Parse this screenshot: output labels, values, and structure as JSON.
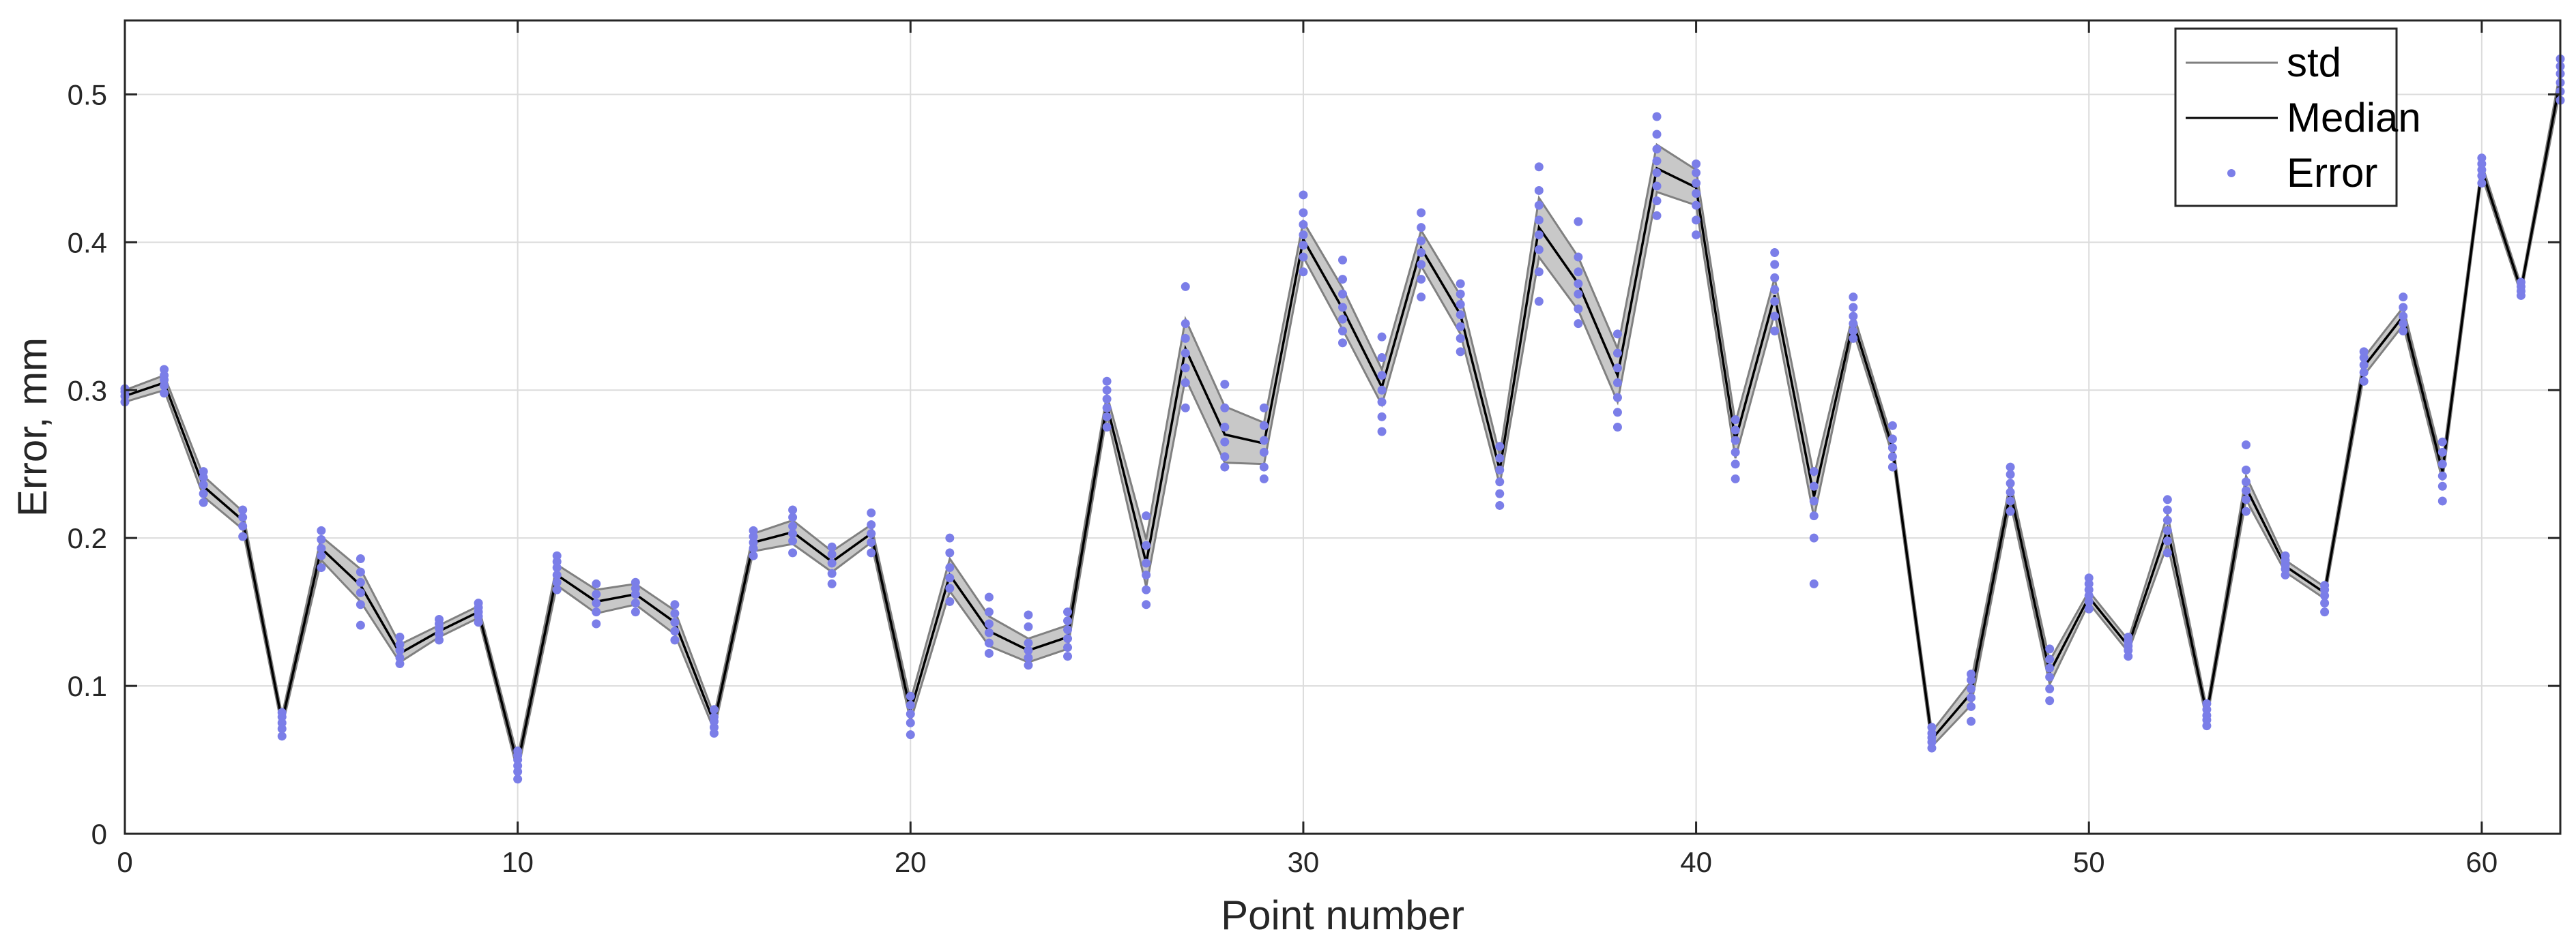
{
  "chart_data": {
    "type": "line",
    "xlabel": "Point number",
    "ylabel": "Error, mm",
    "xlim": [
      0,
      62
    ],
    "ylim": [
      0,
      0.55
    ],
    "grid": true,
    "legend_position": "top-right",
    "xticks": [
      0,
      10,
      20,
      30,
      40,
      50,
      60
    ],
    "yticks": [
      0,
      0.1,
      0.2,
      0.3,
      0.4,
      0.5
    ],
    "colors": {
      "std": "#808080",
      "std_fill": "#c8c8c8",
      "median": "#000000",
      "error": "#7b7ee8"
    },
    "legend": [
      "std",
      "Median",
      "Error"
    ],
    "x": [
      0,
      1,
      2,
      3,
      4,
      5,
      6,
      7,
      8,
      9,
      10,
      11,
      12,
      13,
      14,
      15,
      16,
      17,
      18,
      19,
      20,
      21,
      22,
      23,
      24,
      25,
      26,
      27,
      28,
      29,
      30,
      31,
      32,
      33,
      34,
      35,
      36,
      37,
      38,
      39,
      40,
      41,
      42,
      43,
      44,
      45,
      46,
      47,
      48,
      49,
      50,
      51,
      52,
      53,
      54,
      55,
      56,
      57,
      58,
      59,
      60,
      61,
      62
    ],
    "series": [
      {
        "name": "Median",
        "values": [
          0.296,
          0.305,
          0.235,
          0.212,
          0.076,
          0.193,
          0.168,
          0.122,
          0.137,
          0.15,
          0.047,
          0.175,
          0.157,
          0.162,
          0.143,
          0.075,
          0.197,
          0.204,
          0.184,
          0.203,
          0.083,
          0.175,
          0.137,
          0.124,
          0.133,
          0.29,
          0.183,
          0.328,
          0.27,
          0.264,
          0.402,
          0.355,
          0.302,
          0.396,
          0.351,
          0.246,
          0.41,
          0.372,
          0.31,
          0.45,
          0.437,
          0.266,
          0.364,
          0.228,
          0.346,
          0.261,
          0.064,
          0.095,
          0.231,
          0.109,
          0.16,
          0.127,
          0.206,
          0.081,
          0.234,
          0.181,
          0.163,
          0.316,
          0.35,
          0.245,
          0.449,
          0.368,
          0.51
        ]
      },
      {
        "name": "std",
        "values": [
          0.004,
          0.005,
          0.007,
          0.006,
          0.004,
          0.008,
          0.011,
          0.006,
          0.004,
          0.004,
          0.005,
          0.007,
          0.008,
          0.007,
          0.008,
          0.005,
          0.006,
          0.008,
          0.007,
          0.006,
          0.007,
          0.011,
          0.01,
          0.008,
          0.008,
          0.007,
          0.016,
          0.02,
          0.019,
          0.014,
          0.012,
          0.014,
          0.012,
          0.012,
          0.013,
          0.01,
          0.02,
          0.018,
          0.018,
          0.016,
          0.012,
          0.012,
          0.012,
          0.014,
          0.006,
          0.005,
          0.005,
          0.008,
          0.007,
          0.008,
          0.004,
          0.004,
          0.01,
          0.004,
          0.008,
          0.004,
          0.004,
          0.006,
          0.006,
          0.006,
          0.004,
          0.003,
          0.006
        ]
      },
      {
        "name": "Error",
        "points": [
          [
            0,
            [
              0.292,
              0.296,
              0.299,
              0.301
            ]
          ],
          [
            1,
            [
              0.298,
              0.303,
              0.307,
              0.31,
              0.314
            ]
          ],
          [
            2,
            [
              0.224,
              0.23,
              0.236,
              0.241,
              0.245
            ]
          ],
          [
            3,
            [
              0.201,
              0.208,
              0.214,
              0.219
            ]
          ],
          [
            4,
            [
              0.066,
              0.071,
              0.075,
              0.079,
              0.082
            ]
          ],
          [
            5,
            [
              0.18,
              0.188,
              0.193,
              0.199,
              0.205
            ]
          ],
          [
            6,
            [
              0.141,
              0.155,
              0.163,
              0.17,
              0.177,
              0.186
            ]
          ],
          [
            7,
            [
              0.115,
              0.119,
              0.124,
              0.128,
              0.133
            ]
          ],
          [
            8,
            [
              0.131,
              0.135,
              0.139,
              0.142,
              0.145
            ]
          ],
          [
            9,
            [
              0.143,
              0.147,
              0.15,
              0.153,
              0.156
            ]
          ],
          [
            10,
            [
              0.037,
              0.042,
              0.046,
              0.05,
              0.053,
              0.056
            ]
          ],
          [
            11,
            [
              0.165,
              0.17,
              0.175,
              0.18,
              0.184,
              0.188
            ]
          ],
          [
            12,
            [
              0.142,
              0.15,
              0.156,
              0.162,
              0.169
            ]
          ],
          [
            13,
            [
              0.15,
              0.156,
              0.162,
              0.166,
              0.17
            ]
          ],
          [
            14,
            [
              0.131,
              0.137,
              0.143,
              0.149,
              0.155
            ]
          ],
          [
            15,
            [
              0.068,
              0.072,
              0.076,
              0.079,
              0.084
            ]
          ],
          [
            16,
            [
              0.188,
              0.193,
              0.197,
              0.201,
              0.205
            ]
          ],
          [
            17,
            [
              0.19,
              0.198,
              0.203,
              0.208,
              0.214,
              0.219
            ]
          ],
          [
            18,
            [
              0.169,
              0.176,
              0.183,
              0.189,
              0.194
            ]
          ],
          [
            19,
            [
              0.19,
              0.197,
              0.203,
              0.209,
              0.217
            ]
          ],
          [
            20,
            [
              0.067,
              0.075,
              0.081,
              0.087,
              0.093
            ]
          ],
          [
            21,
            [
              0.157,
              0.166,
              0.173,
              0.18,
              0.19,
              0.2
            ]
          ],
          [
            22,
            [
              0.122,
              0.129,
              0.136,
              0.142,
              0.15,
              0.16
            ]
          ],
          [
            23,
            [
              0.114,
              0.119,
              0.124,
              0.129,
              0.14,
              0.148
            ]
          ],
          [
            24,
            [
              0.12,
              0.126,
              0.132,
              0.138,
              0.144,
              0.15
            ]
          ],
          [
            25,
            [
              0.275,
              0.282,
              0.288,
              0.294,
              0.3,
              0.306
            ]
          ],
          [
            26,
            [
              0.155,
              0.165,
              0.175,
              0.183,
              0.195,
              0.215
            ]
          ],
          [
            27,
            [
              0.288,
              0.305,
              0.315,
              0.325,
              0.335,
              0.345,
              0.37
            ]
          ],
          [
            28,
            [
              0.248,
              0.255,
              0.265,
              0.275,
              0.288,
              0.304
            ]
          ],
          [
            29,
            [
              0.24,
              0.248,
              0.258,
              0.266,
              0.276,
              0.288
            ]
          ],
          [
            30,
            [
              0.38,
              0.39,
              0.398,
              0.405,
              0.412,
              0.42,
              0.432
            ]
          ],
          [
            31,
            [
              0.332,
              0.34,
              0.348,
              0.356,
              0.365,
              0.375,
              0.388
            ]
          ],
          [
            32,
            [
              0.272,
              0.282,
              0.292,
              0.3,
              0.31,
              0.322,
              0.336
            ]
          ],
          [
            33,
            [
              0.363,
              0.375,
              0.385,
              0.393,
              0.401,
              0.41,
              0.42
            ]
          ],
          [
            34,
            [
              0.326,
              0.335,
              0.343,
              0.351,
              0.358,
              0.365,
              0.372
            ]
          ],
          [
            35,
            [
              0.222,
              0.23,
              0.238,
              0.246,
              0.254,
              0.262
            ]
          ],
          [
            36,
            [
              0.36,
              0.38,
              0.395,
              0.405,
              0.415,
              0.425,
              0.435,
              0.451
            ]
          ],
          [
            37,
            [
              0.345,
              0.355,
              0.365,
              0.372,
              0.38,
              0.39,
              0.414
            ]
          ],
          [
            38,
            [
              0.275,
              0.285,
              0.295,
              0.305,
              0.315,
              0.325,
              0.338
            ]
          ],
          [
            39,
            [
              0.418,
              0.428,
              0.438,
              0.447,
              0.455,
              0.463,
              0.473,
              0.485
            ]
          ],
          [
            40,
            [
              0.405,
              0.415,
              0.425,
              0.433,
              0.44,
              0.447,
              0.453
            ]
          ],
          [
            41,
            [
              0.24,
              0.25,
              0.258,
              0.266,
              0.273,
              0.28
            ]
          ],
          [
            42,
            [
              0.34,
              0.35,
              0.36,
              0.368,
              0.376,
              0.385,
              0.393
            ]
          ],
          [
            43,
            [
              0.169,
              0.2,
              0.215,
              0.225,
              0.235,
              0.245
            ]
          ],
          [
            44,
            [
              0.335,
              0.34,
              0.345,
              0.35,
              0.356,
              0.363
            ]
          ],
          [
            45,
            [
              0.248,
              0.255,
              0.261,
              0.267,
              0.276
            ]
          ],
          [
            46,
            [
              0.058,
              0.062,
              0.065,
              0.068,
              0.072
            ]
          ],
          [
            47,
            [
              0.076,
              0.086,
              0.092,
              0.098,
              0.104,
              0.108
            ]
          ],
          [
            48,
            [
              0.218,
              0.225,
              0.231,
              0.237,
              0.243,
              0.248
            ]
          ],
          [
            49,
            [
              0.09,
              0.098,
              0.106,
              0.112,
              0.118,
              0.125
            ]
          ],
          [
            50,
            [
              0.152,
              0.157,
              0.161,
              0.165,
              0.169,
              0.173
            ]
          ],
          [
            51,
            [
              0.12,
              0.124,
              0.127,
              0.13,
              0.133
            ]
          ],
          [
            52,
            [
              0.19,
              0.198,
              0.205,
              0.212,
              0.219,
              0.226
            ]
          ],
          [
            53,
            [
              0.073,
              0.077,
              0.08,
              0.084,
              0.088
            ]
          ],
          [
            54,
            [
              0.218,
              0.226,
              0.232,
              0.238,
              0.246,
              0.263
            ]
          ],
          [
            55,
            [
              0.175,
              0.179,
              0.182,
              0.185,
              0.188
            ]
          ],
          [
            56,
            [
              0.15,
              0.156,
              0.161,
              0.165,
              0.168
            ]
          ],
          [
            57,
            [
              0.306,
              0.312,
              0.317,
              0.322,
              0.326
            ]
          ],
          [
            58,
            [
              0.34,
              0.345,
              0.35,
              0.356,
              0.363
            ]
          ],
          [
            59,
            [
              0.225,
              0.235,
              0.242,
              0.25,
              0.258,
              0.265
            ]
          ],
          [
            60,
            [
              0.44,
              0.445,
              0.449,
              0.453,
              0.457
            ]
          ],
          [
            61,
            [
              0.364,
              0.367,
              0.37,
              0.373
            ]
          ],
          [
            62,
            [
              0.496,
              0.502,
              0.508,
              0.514,
              0.519,
              0.524
            ]
          ]
        ]
      }
    ]
  }
}
